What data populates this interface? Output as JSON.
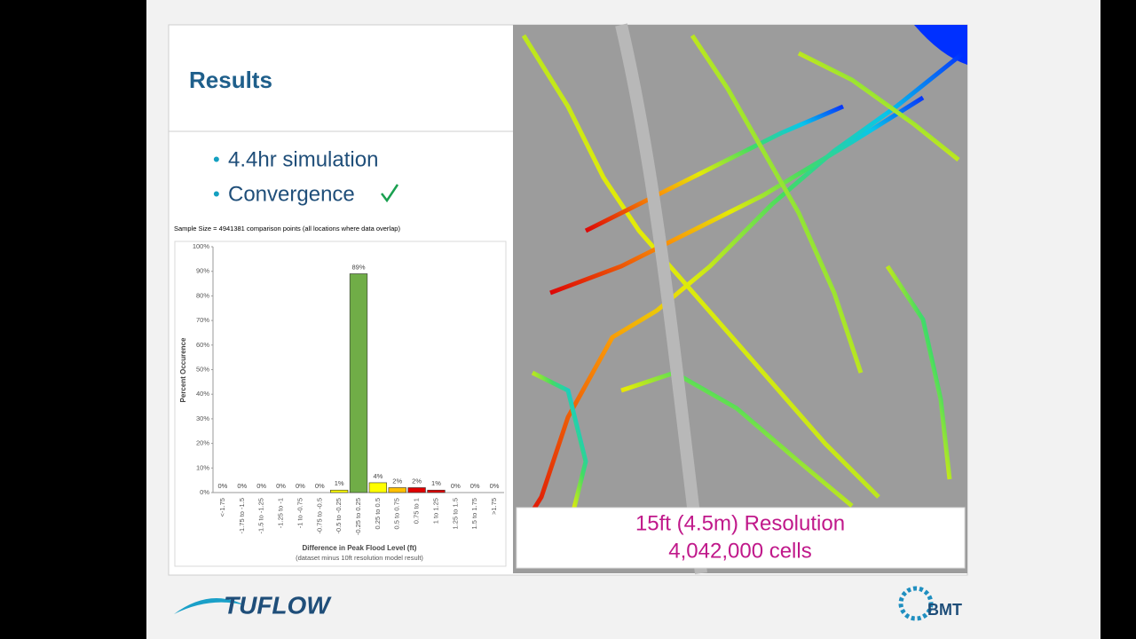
{
  "slide": {
    "title": "Results",
    "bullets": [
      "4.4hr simulation",
      "Convergence"
    ],
    "map_caption": [
      "15ft (4.5m) Resolution",
      "4,042,000 cells"
    ],
    "logos": [
      "TUFLOW",
      "BMT"
    ]
  },
  "chart_data": {
    "type": "bar",
    "title": "Sample Size = 4941381 comparison points (all locations where data overlap)",
    "y_label": "Percent Occurence",
    "x_label": "Difference in Peak Flood Level (ft)",
    "x_sublabel": "(dataset minus 10ft resolution model result)",
    "categories": [
      "<-1.75",
      "-1.75 to -1.5",
      "-1.5 to -1.25",
      "-1.25 to -1",
      "-1 to -0.75",
      "-0.75 to -0.5",
      "-0.5 to -0.25",
      "-0.25 to 0.25",
      "0.25 to 0.5",
      "0.5 to 0.75",
      "0.75 to 1",
      "1 to 1.25",
      "1.25 to 1.5",
      "1.5 to 1.75",
      ">1.75"
    ],
    "values": [
      0,
      0,
      0,
      0,
      0,
      0,
      1,
      89,
      4,
      2,
      2,
      1,
      0,
      0,
      0
    ],
    "value_labels": [
      "0%",
      "0%",
      "0%",
      "0%",
      "0%",
      "0%",
      "1%",
      "89%",
      "4%",
      "2%",
      "2%",
      "1%",
      "0%",
      "0%",
      "0%"
    ],
    "colors": [
      "#ffff00",
      "#ffff00",
      "#ffff00",
      "#ffff00",
      "#ffff00",
      "#ffff00",
      "#ffff00",
      "#70ad47",
      "#ffff00",
      "#ffc000",
      "#e00000",
      "#e00000",
      "#e00000",
      "#e00000",
      "#e00000"
    ],
    "ylim": [
      0,
      100
    ],
    "yticks": [
      {
        "value": 0,
        "label": "0%"
      },
      {
        "value": 10,
        "label": "10%"
      },
      {
        "value": 20,
        "label": "20%"
      },
      {
        "value": 30,
        "label": "30%"
      },
      {
        "value": 40,
        "label": "40%"
      },
      {
        "value": 50,
        "label": "50%"
      },
      {
        "value": 60,
        "label": "60%"
      },
      {
        "value": 70,
        "label": "70%"
      },
      {
        "value": 80,
        "label": "80%"
      },
      {
        "value": 90,
        "label": "90%"
      },
      {
        "value": 100,
        "label": "100%"
      }
    ],
    "grid": false
  }
}
